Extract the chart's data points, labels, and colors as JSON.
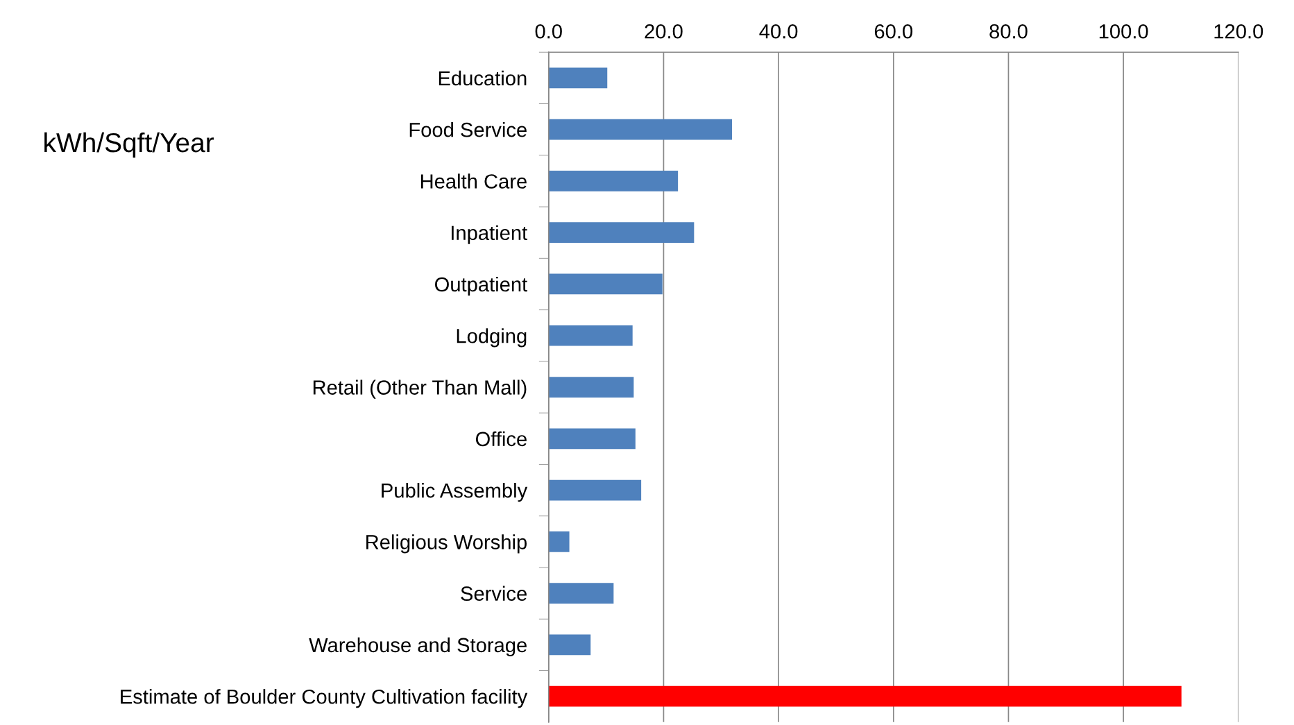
{
  "chart_data": {
    "type": "bar",
    "orientation": "horizontal",
    "annotations": [
      "kWh/Sqft/Year"
    ],
    "categories": [
      "Education",
      "Food Service",
      "Health Care",
      "Inpatient",
      "Outpatient",
      "Lodging",
      "Retail (Other Than Mall)",
      "Office",
      "Public Assembly",
      "Religious Worship",
      "Service",
      "Warehouse and Storage",
      "Estimate of Boulder County Cultivation facility"
    ],
    "values": [
      10.2,
      31.9,
      22.5,
      25.3,
      19.8,
      14.6,
      14.8,
      15.1,
      16.1,
      3.6,
      11.3,
      7.3,
      110.1
    ],
    "colors": [
      "#4f81bd",
      "#4f81bd",
      "#4f81bd",
      "#4f81bd",
      "#4f81bd",
      "#4f81bd",
      "#4f81bd",
      "#4f81bd",
      "#4f81bd",
      "#4f81bd",
      "#4f81bd",
      "#4f81bd",
      "#ff0000"
    ],
    "xlim": [
      0,
      120
    ],
    "xticks": [
      {
        "value": 0,
        "label": "0.0"
      },
      {
        "value": 20,
        "label": "20.0"
      },
      {
        "value": 40,
        "label": "40.0"
      },
      {
        "value": 60,
        "label": "60.0"
      },
      {
        "value": 80,
        "label": "80.0"
      },
      {
        "value": 100,
        "label": "100.0"
      },
      {
        "value": 120,
        "label": "120.0"
      }
    ],
    "grid": "x",
    "legend": false
  }
}
